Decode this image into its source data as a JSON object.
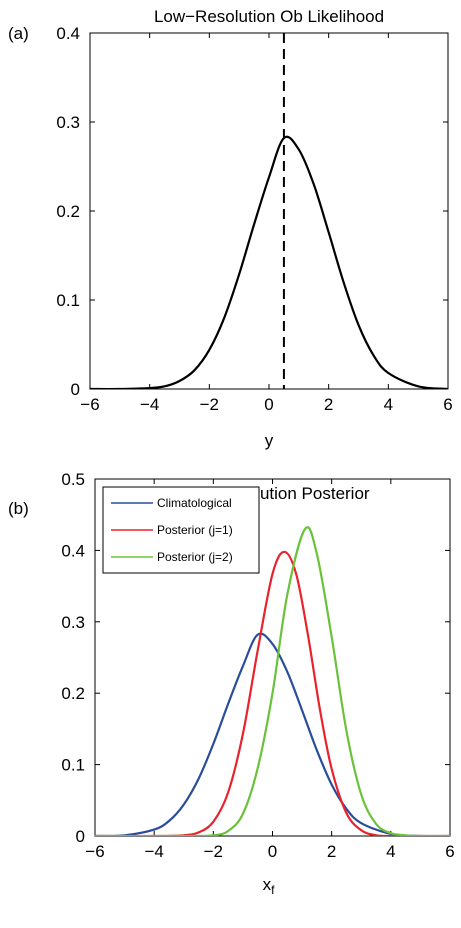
{
  "chart_data": [
    {
      "panel_label": "(a)",
      "type": "line",
      "title": "Low−Resolution Ob Likelihood",
      "xlabel": "y",
      "ylabel": "",
      "xlim": [
        -6,
        6
      ],
      "ylim": [
        0,
        0.4
      ],
      "xticks": [
        -6,
        -4,
        -2,
        0,
        2,
        4,
        6
      ],
      "xtick_labels": [
        "−6",
        "−4",
        "−2",
        "0",
        "2",
        "4",
        "6"
      ],
      "yticks": [
        0,
        0.1,
        0.2,
        0.3,
        0.4
      ],
      "ytick_labels": [
        "0",
        "0.1",
        "0.2",
        "0.3",
        "0.4"
      ],
      "grid": false,
      "series": [
        {
          "color": "#000000",
          "style": "solid",
          "x": [
            -6,
            -5,
            -4,
            -3.5,
            -3,
            -2.5,
            -2,
            -1.5,
            -1,
            -0.5,
            0,
            0.5,
            1,
            1.5,
            2,
            2.5,
            3,
            3.5,
            4,
            5,
            6
          ],
          "y": [
            0.0,
            0.0,
            0.001,
            0.003,
            0.009,
            0.021,
            0.044,
            0.08,
            0.129,
            0.185,
            0.238,
            0.282,
            0.269,
            0.23,
            0.176,
            0.12,
            0.072,
            0.038,
            0.018,
            0.003,
            0.0
          ]
        }
      ],
      "vlines": [
        {
          "x": 0.5,
          "color": "#000000",
          "style": "dashed"
        }
      ]
    },
    {
      "panel_label": "(b)",
      "type": "line",
      "title": "Low−Resolution Posterior",
      "xlabel": "x",
      "xlabel_sub": "f",
      "ylabel": "",
      "xlim": [
        -6,
        6
      ],
      "ylim": [
        0,
        0.5
      ],
      "xticks": [
        -6,
        -4,
        -2,
        0,
        2,
        4,
        6
      ],
      "xtick_labels": [
        "−6",
        "−4",
        "−2",
        "0",
        "2",
        "4",
        "6"
      ],
      "yticks": [
        0,
        0.1,
        0.2,
        0.3,
        0.4,
        0.5
      ],
      "ytick_labels": [
        "0",
        "0.1",
        "0.2",
        "0.3",
        "0.4",
        "0.5"
      ],
      "grid": false,
      "legend_position": "top-left",
      "series": [
        {
          "name": "Climatological",
          "color": "#2a4d9b",
          "x": [
            -6,
            -5,
            -4,
            -3.5,
            -3,
            -2.5,
            -2,
            -1.5,
            -1,
            -0.5,
            0,
            0.5,
            1,
            1.5,
            2,
            2.5,
            3,
            4,
            5,
            6
          ],
          "y": [
            0.0,
            0.001,
            0.009,
            0.021,
            0.044,
            0.08,
            0.129,
            0.185,
            0.238,
            0.282,
            0.269,
            0.23,
            0.176,
            0.12,
            0.072,
            0.038,
            0.018,
            0.003,
            0.0,
            0.0
          ]
        },
        {
          "name": "Posterior (j=1)",
          "color": "#e8232b",
          "x": [
            -6,
            -4,
            -3,
            -2.5,
            -2,
            -1.5,
            -1,
            -0.5,
            0,
            0.4,
            0.8,
            1.2,
            1.6,
            2,
            2.5,
            3,
            3.5,
            4,
            5,
            6
          ],
          "y": [
            0.0,
            0.0,
            0.001,
            0.005,
            0.02,
            0.061,
            0.143,
            0.26,
            0.367,
            0.398,
            0.367,
            0.281,
            0.178,
            0.094,
            0.032,
            0.008,
            0.001,
            0.0,
            0.0,
            0.0
          ]
        },
        {
          "name": "Posterior (j=2)",
          "color": "#6ac23a",
          "x": [
            -6,
            -3,
            -2,
            -1.5,
            -1,
            -0.5,
            0,
            0.5,
            1.1,
            1.5,
            2,
            2.5,
            3,
            3.5,
            4,
            4.5,
            5,
            6
          ],
          "y": [
            0.0,
            0.0,
            0.001,
            0.007,
            0.031,
            0.095,
            0.2,
            0.338,
            0.43,
            0.395,
            0.279,
            0.147,
            0.058,
            0.017,
            0.004,
            0.001,
            0.0,
            0.0
          ]
        }
      ]
    }
  ]
}
